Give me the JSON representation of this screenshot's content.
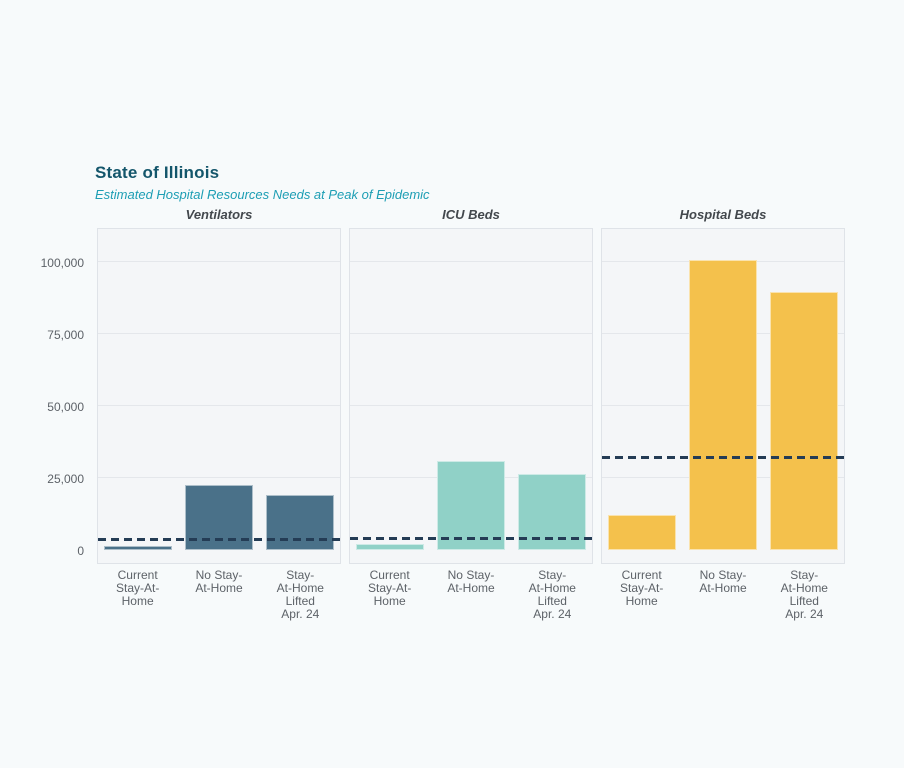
{
  "header": {
    "title": "State of Illinois",
    "subtitle": "Estimated Hospital Resources Needs at Peak of Epidemic",
    "title_color": "#14566b",
    "subtitle_color": "#1d9eb4"
  },
  "chart_data": {
    "type": "bar",
    "title": "State of Illinois",
    "subtitle": "Estimated Hospital Resources Needs at Peak of Epidemic",
    "categories": [
      "Current\nStay-At-\nHome",
      "No Stay-\nAt-Home",
      "Stay-\nAt-Home\nLifted\nApr. 24"
    ],
    "panels": [
      {
        "title": "Ventilators",
        "bar_color": "#4a7189",
        "values": [
          1300,
          22700,
          19100
        ],
        "capacity_line": 3300
      },
      {
        "title": "ICU Beds",
        "bar_color": "#90d1c7",
        "values": [
          2000,
          31000,
          26300
        ],
        "capacity_line": 3600
      },
      {
        "title": "Hospital Beds",
        "bar_color": "#f4c14c",
        "values": [
          12200,
          100800,
          89400
        ],
        "capacity_line": 31500
      }
    ],
    "capacity_line_color": "#243c55",
    "capacity_line_style": "dashed",
    "yticks": [
      0,
      25000,
      50000,
      75000,
      100000
    ],
    "ytick_labels": [
      "0",
      "25,000",
      "50,000",
      "75,000",
      "100,000"
    ],
    "ylim": [
      0,
      105500
    ],
    "grid": true,
    "legend_position": "none",
    "panel_bg": "#f4f6f8",
    "page_bg": "#f7fafb"
  }
}
